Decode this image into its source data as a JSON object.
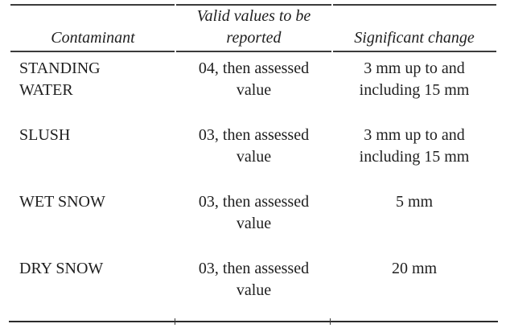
{
  "page": {
    "background": "#ffffff",
    "text_color": "#1e1e1e",
    "rule_color": "#3b3b3b"
  },
  "table": {
    "header": {
      "contaminant": {
        "lines": [
          "Contaminant"
        ]
      },
      "valid_values": {
        "lines": [
          "Valid values to be",
          "reported"
        ]
      },
      "significant_change": {
        "lines": [
          "Significant change"
        ]
      }
    },
    "rows": [
      {
        "contaminant": {
          "lines": [
            "STANDING",
            "WATER"
          ]
        },
        "valid_values": {
          "lines": [
            "04, then assessed",
            "value"
          ]
        },
        "significant_change": {
          "lines": [
            "3 mm up to and",
            "including 15 mm"
          ]
        }
      },
      {
        "contaminant": {
          "lines": [
            "SLUSH"
          ]
        },
        "valid_values": {
          "lines": [
            "03, then assessed",
            "value"
          ]
        },
        "significant_change": {
          "lines": [
            "3 mm up to and",
            "including 15 mm"
          ]
        }
      },
      {
        "contaminant": {
          "lines": [
            "WET SNOW"
          ]
        },
        "valid_values": {
          "lines": [
            "03, then assessed",
            "value"
          ]
        },
        "significant_change": {
          "lines": [
            "5 mm"
          ]
        }
      },
      {
        "contaminant": {
          "lines": [
            "DRY SNOW"
          ]
        },
        "valid_values": {
          "lines": [
            "03, then assessed",
            "value"
          ]
        },
        "significant_change": {
          "lines": [
            "20 mm"
          ]
        }
      }
    ]
  }
}
